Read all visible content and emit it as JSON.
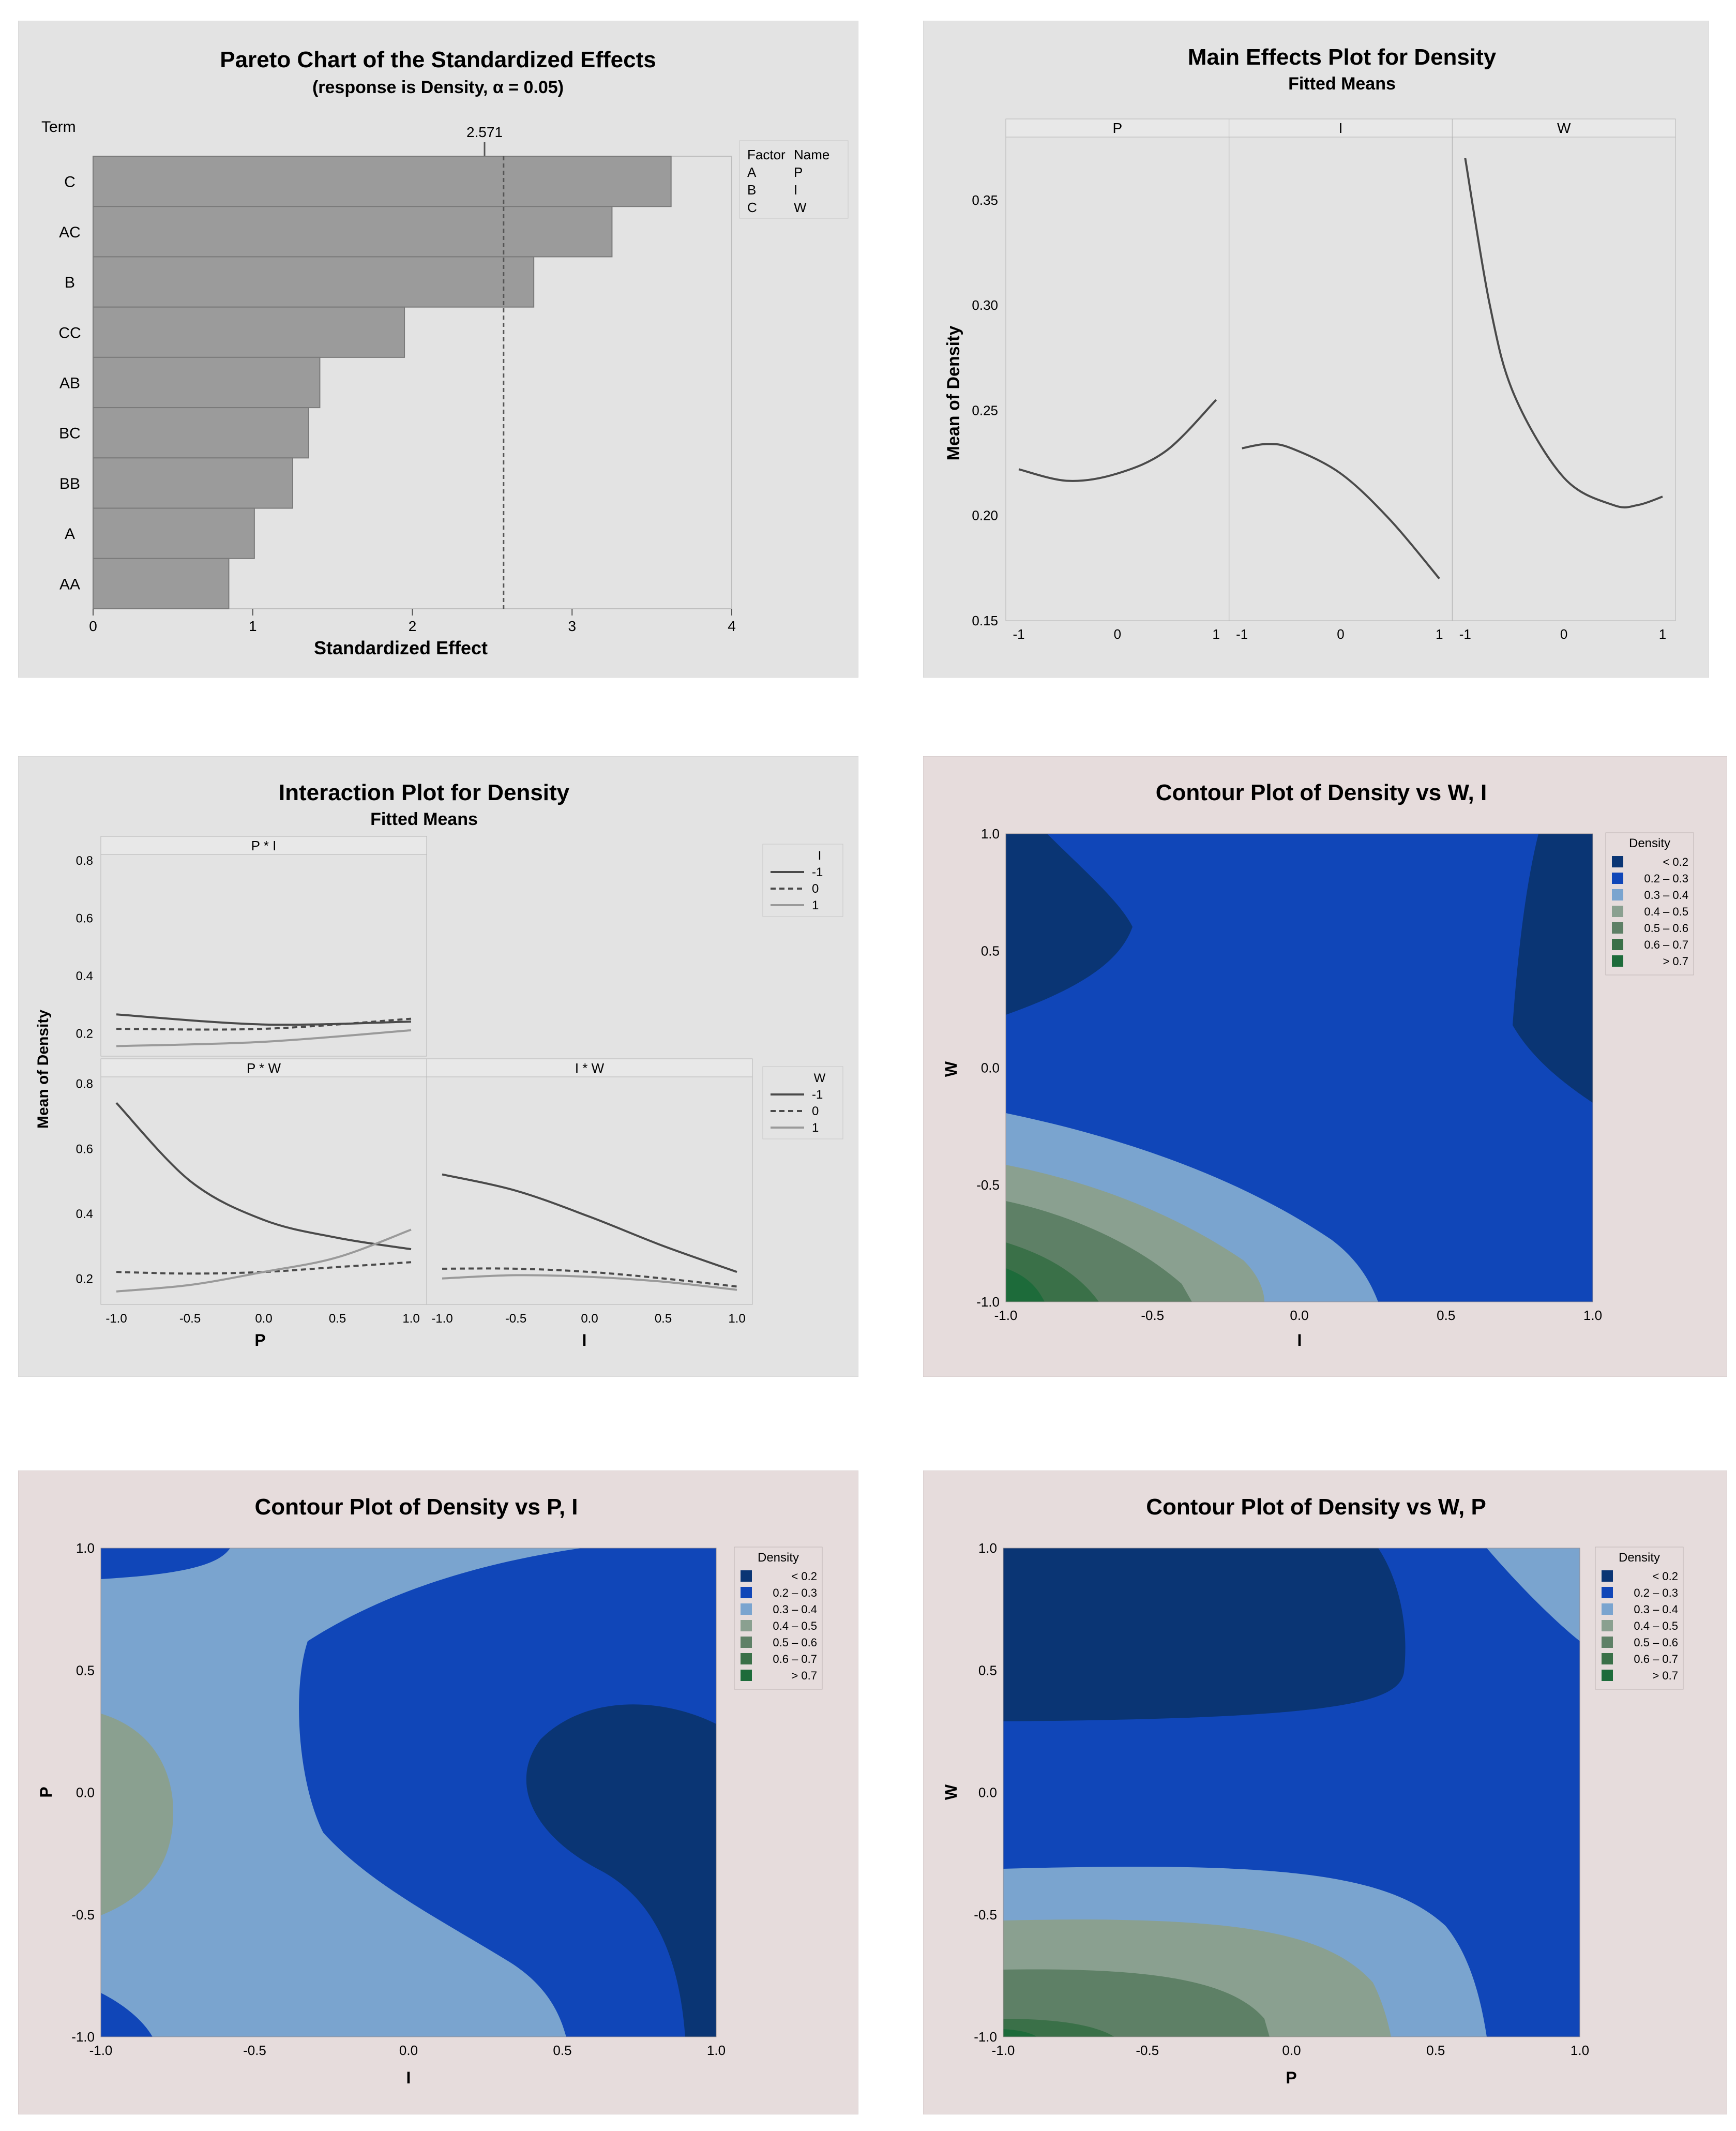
{
  "colors": {
    "grey_bg": "#e3e3e3",
    "contour_bg": "#e6dcdc",
    "bar_fill": "#9b9b9b",
    "line": "#4a4a4a",
    "c_lt02": "#0a3574",
    "c_02_03": "#1046b8",
    "c_03_04": "#7aa4cf",
    "c_04_05": "#8aa090",
    "c_05_06": "#5e8066",
    "c_06_07": "#3a7048",
    "c_gt07": "#1d6b3a"
  },
  "chart_data": [
    {
      "type": "bar",
      "id": "pareto",
      "title": "Pareto Chart of the Standardized Effects",
      "subtitle": "(response is Density, α = 0.05)",
      "ylabel": "Term",
      "xlabel": "Standardized Effect",
      "categories": [
        "C",
        "AC",
        "B",
        "CC",
        "AB",
        "BC",
        "BB",
        "A",
        "AA"
      ],
      "values": [
        3.62,
        3.25,
        2.76,
        1.95,
        1.42,
        1.35,
        1.25,
        1.01,
        0.85
      ],
      "xlim": [
        0,
        4
      ],
      "xticks": [
        "0",
        "1",
        "2",
        "3",
        "4"
      ],
      "reference_line": 2.571,
      "reference_label": "2.571",
      "legend": {
        "headers": [
          "Factor",
          "Name"
        ],
        "rows": [
          [
            "A",
            "P"
          ],
          [
            "B",
            "I"
          ],
          [
            "C",
            "W"
          ]
        ]
      }
    },
    {
      "type": "line",
      "id": "main_effects",
      "title": "Main Effects Plot for Density",
      "subtitle": "Fitted Means",
      "ylabel": "Mean of Density",
      "ylim": [
        0.15,
        0.38
      ],
      "yticks": [
        "0.15",
        "0.20",
        "0.25",
        "0.30",
        "0.35"
      ],
      "xticks": [
        "-1",
        "0",
        "1"
      ],
      "panels": [
        {
          "name": "P",
          "x": [
            -1,
            -0.5,
            0,
            0.5,
            1
          ],
          "y": [
            0.222,
            0.2165,
            0.22,
            0.231,
            0.255
          ]
        },
        {
          "name": "I",
          "x": [
            -1,
            -0.75,
            -0.5,
            0,
            0.5,
            1
          ],
          "y": [
            0.232,
            0.234,
            0.232,
            0.22,
            0.198,
            0.17
          ]
        },
        {
          "name": "W",
          "x": [
            -1,
            -0.75,
            -0.5,
            0,
            0.5,
            0.75,
            1
          ],
          "y": [
            0.37,
            0.3,
            0.257,
            0.218,
            0.205,
            0.205,
            0.209
          ]
        }
      ]
    },
    {
      "type": "line",
      "id": "interaction",
      "title": "Interaction Plot for Density",
      "subtitle": "Fitted Means",
      "ylabel": "Mean of Density",
      "ylim": [
        0.12,
        0.82
      ],
      "yticks": [
        "0.2",
        "0.4",
        "0.6",
        "0.8"
      ],
      "xticks": [
        "-1.0",
        "-0.5",
        "0.0",
        "0.5",
        "1.0"
      ],
      "xlabels": [
        "P",
        "I"
      ],
      "panels": [
        {
          "name": "P * I",
          "x": [
            -1,
            0,
            1
          ],
          "series": [
            {
              "name": "-1",
              "y": [
                0.265,
                0.23,
                0.24
              ]
            },
            {
              "name": "0",
              "y": [
                0.215,
                0.215,
                0.25
              ]
            },
            {
              "name": "1",
              "y": [
                0.155,
                0.17,
                0.21
              ]
            }
          ]
        },
        {
          "name": "P * W",
          "x": [
            -1,
            -0.5,
            0,
            0.5,
            1
          ],
          "series": [
            {
              "name": "-1",
              "y": [
                0.74,
                0.5,
                0.38,
                0.325,
                0.29
              ]
            },
            {
              "name": "0",
              "y": [
                0.22,
                0.215,
                0.22,
                0.235,
                0.25
              ]
            },
            {
              "name": "1",
              "y": [
                0.16,
                0.18,
                0.22,
                0.265,
                0.35
              ]
            }
          ]
        },
        {
          "name": "I * W",
          "x": [
            -1,
            -0.5,
            0,
            0.5,
            1
          ],
          "series": [
            {
              "name": "-1",
              "y": [
                0.52,
                0.47,
                0.39,
                0.3,
                0.22
              ]
            },
            {
              "name": "0",
              "y": [
                0.23,
                0.23,
                0.22,
                0.2,
                0.175
              ]
            },
            {
              "name": "1",
              "y": [
                0.2,
                0.21,
                0.205,
                0.19,
                0.165
              ]
            }
          ]
        }
      ],
      "legends": [
        {
          "title": "I",
          "entries": [
            "-1",
            "0",
            "1"
          ]
        },
        {
          "title": "W",
          "entries": [
            "-1",
            "0",
            "1"
          ]
        }
      ]
    },
    {
      "type": "heatmap",
      "id": "contour_w_i",
      "title": "Contour Plot of Density vs W, I",
      "xlabel": "I",
      "ylabel": "W",
      "xlim": [
        -1,
        1
      ],
      "ylim": [
        -1,
        1
      ],
      "xticks": [
        "-1.0",
        "-0.5",
        "0.0",
        "0.5",
        "1.0"
      ],
      "yticks": [
        "-1.0",
        "-0.5",
        "0.0",
        "0.5",
        "1.0"
      ],
      "legend_title": "Density",
      "legend_entries": [
        "< 0.2",
        "0.2 – 0.3",
        "0.3 – 0.4",
        "0.4 – 0.5",
        "0.5 – 0.6",
        "0.6 – 0.7",
        "> 0.7"
      ]
    },
    {
      "type": "heatmap",
      "id": "contour_p_i",
      "title": "Contour Plot of Density vs P, I",
      "xlabel": "I",
      "ylabel": "P",
      "xlim": [
        -1,
        1
      ],
      "ylim": [
        -1,
        1
      ],
      "xticks": [
        "-1.0",
        "-0.5",
        "0.0",
        "0.5",
        "1.0"
      ],
      "yticks": [
        "-1.0",
        "-0.5",
        "0.0",
        "0.5",
        "1.0"
      ],
      "legend_title": "Density",
      "legend_entries": [
        "< 0.2",
        "0.2 – 0.3",
        "0.3 – 0.4",
        "0.4 – 0.5",
        "0.5 – 0.6",
        "0.6 – 0.7",
        "> 0.7"
      ]
    },
    {
      "type": "heatmap",
      "id": "contour_w_p",
      "title": "Contour Plot of Density vs W, P",
      "xlabel": "P",
      "ylabel": "W",
      "xlim": [
        -1,
        1
      ],
      "ylim": [
        -1,
        1
      ],
      "xticks": [
        "-1.0",
        "-0.5",
        "0.0",
        "0.5",
        "1.0"
      ],
      "yticks": [
        "-1.0",
        "-0.5",
        "0.0",
        "0.5",
        "1.0"
      ],
      "legend_title": "Density",
      "legend_entries": [
        "< 0.2",
        "0.2 – 0.3",
        "0.3 – 0.4",
        "0.4 – 0.5",
        "0.5 – 0.6",
        "0.6 – 0.7",
        "> 0.7"
      ]
    }
  ]
}
